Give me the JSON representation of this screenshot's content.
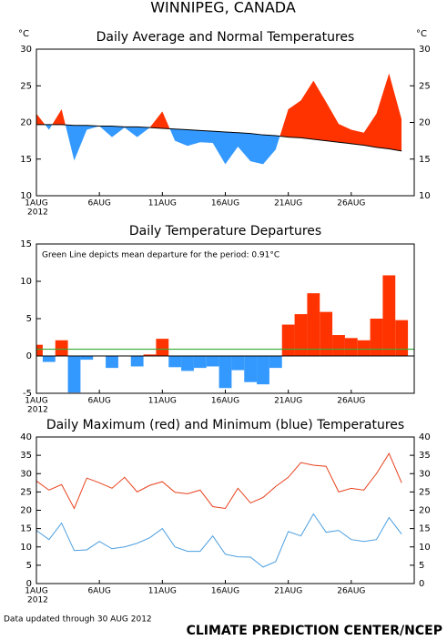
{
  "page_title": "WINNIPEG, CANADA",
  "chart_data": [
    {
      "type": "area-departure",
      "title": "Daily Average and Normal Temperatures",
      "y_unit": "°C",
      "x": [
        1,
        2,
        3,
        4,
        5,
        6,
        7,
        8,
        9,
        10,
        11,
        12,
        13,
        14,
        15,
        16,
        17,
        18,
        19,
        20,
        21,
        22,
        23,
        24,
        25,
        26,
        27,
        28,
        29,
        30
      ],
      "xlim": [
        1,
        31
      ],
      "xticks": [
        {
          "value": 1,
          "label": "1AUG"
        },
        {
          "value": 6,
          "label": "6AUG"
        },
        {
          "value": 11,
          "label": "11AUG"
        },
        {
          "value": 16,
          "label": "16AUG"
        },
        {
          "value": 21,
          "label": "21AUG"
        },
        {
          "value": 26,
          "label": "26AUG"
        }
      ],
      "year_label": "2012",
      "series": [
        {
          "color": "#000000",
          "values": [
            21.2,
            19.0,
            21.8,
            14.8,
            19.0,
            19.5,
            18.0,
            19.3,
            18.0,
            19.3,
            21.5,
            17.5,
            16.8,
            17.3,
            17.2,
            14.3,
            16.7,
            14.7,
            14.3,
            16.3,
            21.8,
            23.0,
            25.7,
            22.8,
            19.8,
            19.0,
            18.6,
            21.2,
            26.7,
            20.4
          ]
        },
        {
          "color": "#000000",
          "values": [
            19.7,
            19.7,
            19.7,
            19.6,
            19.6,
            19.5,
            19.5,
            19.4,
            19.4,
            19.3,
            19.2,
            19.1,
            19.0,
            18.9,
            18.8,
            18.7,
            18.6,
            18.5,
            18.3,
            18.2,
            18.0,
            17.9,
            17.7,
            17.5,
            17.3,
            17.1,
            16.9,
            16.6,
            16.4,
            16.1
          ]
        }
      ],
      "above_color": "#ff3300",
      "below_color": "#3399ff",
      "ylim": [
        10,
        30
      ],
      "yticks": [
        10,
        15,
        20,
        25,
        30
      ],
      "right_axis": true
    },
    {
      "type": "bar",
      "title": "Daily Temperature Departures",
      "annotation": "Green Line depicts mean departure for the period: 0.91°C",
      "x": [
        1,
        2,
        3,
        4,
        5,
        6,
        7,
        8,
        9,
        10,
        11,
        12,
        13,
        14,
        15,
        16,
        17,
        18,
        19,
        20,
        21,
        22,
        23,
        24,
        25,
        26,
        27,
        28,
        29,
        30
      ],
      "xlim": [
        1,
        31
      ],
      "xticks": [
        {
          "value": 1,
          "label": "1AUG"
        },
        {
          "value": 6,
          "label": "6AUG"
        },
        {
          "value": 11,
          "label": "11AUG"
        },
        {
          "value": 16,
          "label": "16AUG"
        },
        {
          "value": 21,
          "label": "21AUG"
        },
        {
          "value": 26,
          "label": "26AUG"
        }
      ],
      "year_label": "2012",
      "values": [
        1.5,
        -0.8,
        2.1,
        -4.9,
        -0.5,
        0,
        -1.6,
        0,
        -1.4,
        0.2,
        2.3,
        -1.5,
        -2.0,
        -1.6,
        -1.4,
        -4.3,
        -1.9,
        -3.5,
        -3.8,
        -1.6,
        4.2,
        5.6,
        8.4,
        5.9,
        2.8,
        2.4,
        2.1,
        5.0,
        10.8,
        4.8
      ],
      "positive_color": "#ff3300",
      "negative_color": "#3399ff",
      "mean_line": {
        "value": 0.91,
        "color": "#33aa33"
      },
      "ylim": [
        -5,
        15
      ],
      "yticks": [
        -5,
        0,
        5,
        10,
        15
      ],
      "right_axis": false
    },
    {
      "type": "line",
      "title": "Daily Maximum (red) and Minimum (blue) Temperatures",
      "x": [
        1,
        2,
        3,
        4,
        5,
        6,
        7,
        8,
        9,
        10,
        11,
        12,
        13,
        14,
        15,
        16,
        17,
        18,
        19,
        20,
        21,
        22,
        23,
        24,
        25,
        26,
        27,
        28,
        29,
        30
      ],
      "xlim": [
        1,
        31
      ],
      "xticks": [
        {
          "value": 1,
          "label": "1AUG"
        },
        {
          "value": 6,
          "label": "6AUG"
        },
        {
          "value": 11,
          "label": "11AUG"
        },
        {
          "value": 16,
          "label": "16AUG"
        },
        {
          "value": 21,
          "label": "21AUG"
        },
        {
          "value": 26,
          "label": "26AUG"
        }
      ],
      "year_label": "2012",
      "series": [
        {
          "color": "#e8401c",
          "values": [
            28,
            25.5,
            27,
            20.5,
            28.8,
            27.5,
            26,
            29,
            25,
            26.8,
            27.8,
            24.9,
            24.5,
            25.5,
            21,
            20.5,
            26,
            22,
            23.5,
            26.5,
            29,
            33,
            32.3,
            32,
            25,
            26,
            25.5,
            30,
            35.5,
            27.5
          ]
        },
        {
          "color": "#4a9ee0",
          "values": [
            14.5,
            12,
            16.5,
            9,
            9.2,
            11.5,
            9.5,
            10,
            11,
            12.5,
            15,
            10,
            8.8,
            8.8,
            13,
            8,
            7.3,
            7.2,
            4.5,
            6,
            14.2,
            13,
            19,
            14,
            14.5,
            12,
            11.5,
            12,
            18,
            13.5
          ]
        }
      ],
      "ylim": [
        0,
        40
      ],
      "yticks": [
        0,
        5,
        10,
        15,
        20,
        25,
        30,
        35,
        40
      ],
      "right_axis": true
    }
  ],
  "footer": {
    "note": "Data updated through 30 AUG 2012",
    "credit": "CLIMATE PREDICTION CENTER/NCEP"
  }
}
